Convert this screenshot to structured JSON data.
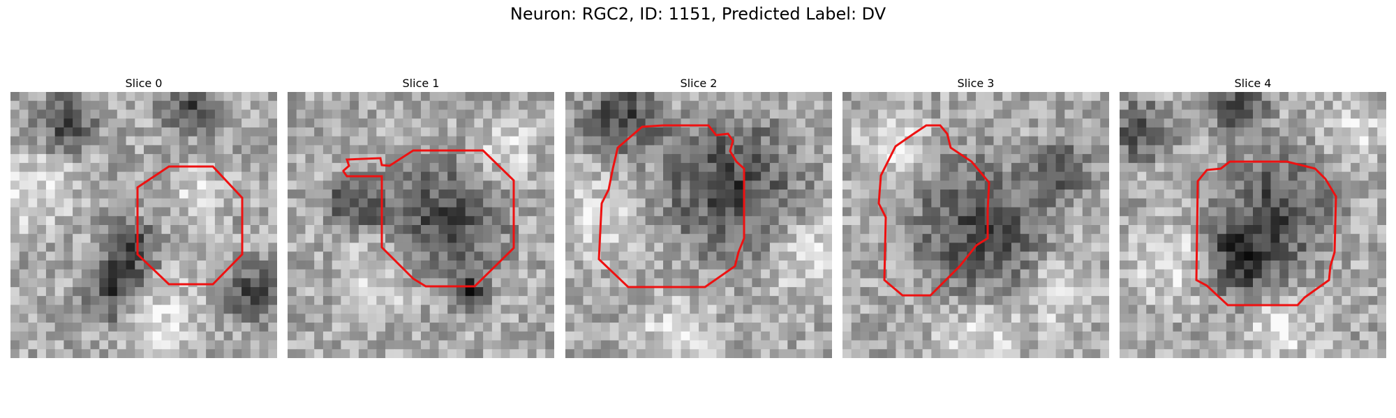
{
  "figure": {
    "title": "Neuron: RGC2, ID: 1151, Predicted Label: DV"
  },
  "panels": [
    {
      "title": "Slice 0"
    },
    {
      "title": "Slice 1"
    },
    {
      "title": "Slice 2"
    },
    {
      "title": "Slice 3"
    },
    {
      "title": "Slice 4"
    }
  ],
  "colors": {
    "contour": "#ee1111",
    "background": "#ffffff"
  }
}
